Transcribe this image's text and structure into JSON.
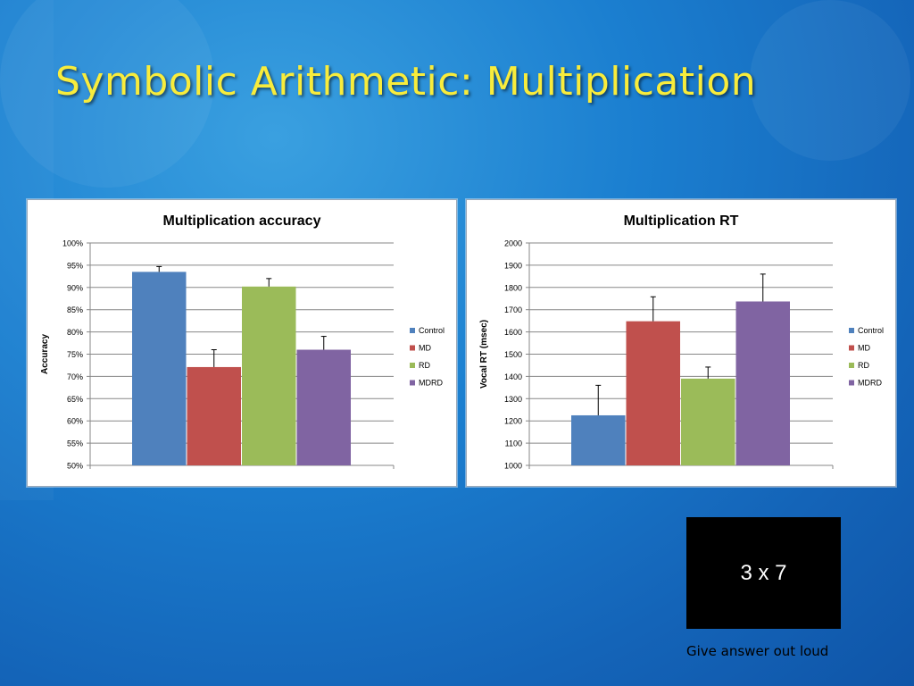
{
  "slide": {
    "title": "Symbolic Arithmetic: Multiplication",
    "stimulus_text": "3 x 7",
    "caption": "Give answer out loud"
  },
  "colors": {
    "title": "#f8ec3c",
    "Control": "#4f81bd",
    "MD": "#c0504d",
    "RD": "#9bbb59",
    "MDRD": "#8064a2"
  },
  "chart_data": [
    {
      "type": "bar",
      "title": "Multiplication accuracy",
      "xlabel": "",
      "ylabel": "Accuracy",
      "ylim": [
        0.5,
        1.0
      ],
      "tick_labels": [
        "50%",
        "55%",
        "60%",
        "65%",
        "70%",
        "75%",
        "80%",
        "85%",
        "90%",
        "95%",
        "100%"
      ],
      "grid": true,
      "legend": "right",
      "series": [
        {
          "name": "Control",
          "values": [
            0.935
          ],
          "error": [
            0.012
          ]
        },
        {
          "name": "MD",
          "values": [
            0.721
          ],
          "error": [
            0.039
          ]
        },
        {
          "name": "RD",
          "values": [
            0.902
          ],
          "error": [
            0.018
          ]
        },
        {
          "name": "MDRD",
          "values": [
            0.76
          ],
          "error": [
            0.03
          ]
        }
      ]
    },
    {
      "type": "bar",
      "title": "Multiplication RT",
      "xlabel": "",
      "ylabel": "Vocal RT  (msec)",
      "ylim": [
        1000,
        2000
      ],
      "tick_labels": [
        "1000",
        "1100",
        "1200",
        "1300",
        "1400",
        "1500",
        "1600",
        "1700",
        "1800",
        "1900",
        "2000"
      ],
      "grid": true,
      "legend": "right",
      "series": [
        {
          "name": "Control",
          "values": [
            1225
          ],
          "error": [
            135
          ]
        },
        {
          "name": "MD",
          "values": [
            1648
          ],
          "error": [
            110
          ]
        },
        {
          "name": "RD",
          "values": [
            1390
          ],
          "error": [
            52
          ]
        },
        {
          "name": "MDRD",
          "values": [
            1737
          ],
          "error": [
            123
          ]
        }
      ]
    }
  ]
}
